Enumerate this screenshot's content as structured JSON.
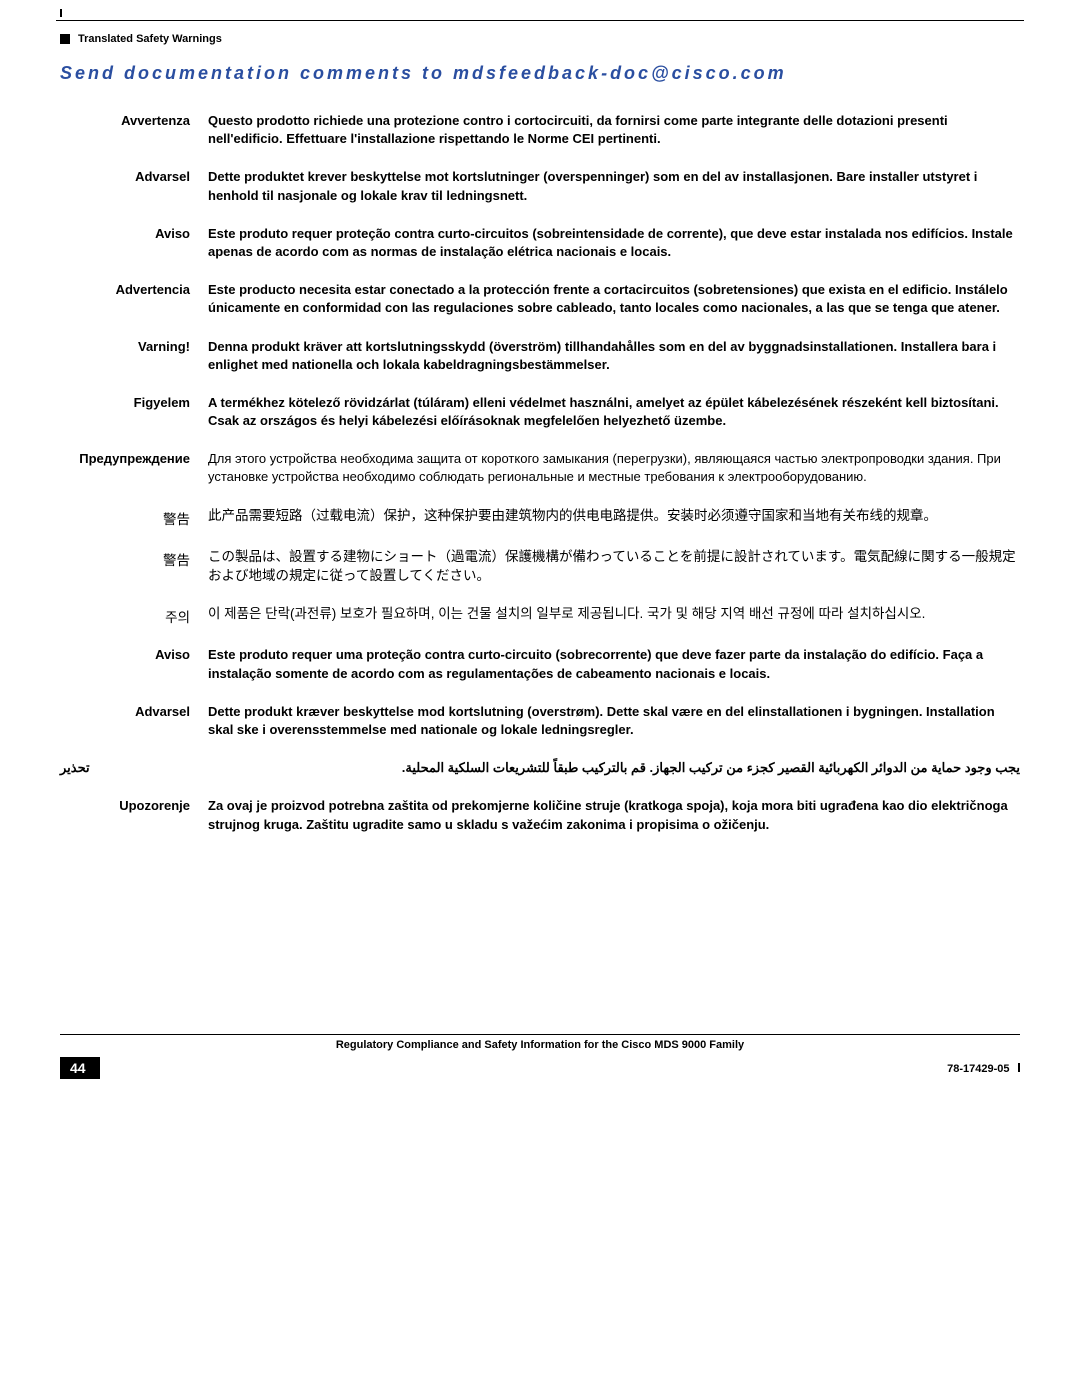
{
  "header": {
    "section": "Translated Safety Warnings",
    "sendLine": "Send documentation comments to mdsfeedback-doc@cisco.com"
  },
  "warnings": [
    {
      "label": "Avvertenza",
      "text": "Questo prodotto richiede una protezione contro i cortocircuiti, da fornirsi come parte integrante delle dotazioni presenti nell'edificio. Effettuare l'installazione rispettando le Norme CEI pertinenti."
    },
    {
      "label": "Advarsel",
      "text": "Dette produktet krever beskyttelse mot kortslutninger (overspenninger) som en del av installasjonen. Bare installer utstyret i henhold til nasjonale og lokale krav til ledningsnett."
    },
    {
      "label": "Aviso",
      "text": "Este produto requer proteção contra curto-circuitos (sobreintensidade de corrente), que deve estar instalada nos edifícios. Instale apenas de acordo com as normas de instalação elétrica nacionais e locais."
    },
    {
      "label": "Advertencia",
      "text": "Este producto necesita estar conectado a la protección frente a cortacircuitos (sobretensiones) que exista en el edificio. Instálelo únicamente en conformidad con las regulaciones sobre cableado, tanto locales como nacionales, a las que se tenga que atener."
    },
    {
      "label": "Varning!",
      "text": "Denna produkt kräver att kortslutningsskydd (överström) tillhandahålles som en del av byggnadsinstallationen. Installera bara i enlighet med nationella och lokala kabeldragningsbestämmelser."
    },
    {
      "label": "Figyelem",
      "text": "A termékhez kötelező rövidzárlat (túláram) elleni védelmet használni, amelyet az épület kábelezésének részeként kell biztosítani. Csak az országos és helyi kábelezési előírásoknak megfelelően helyezhető üzembe."
    },
    {
      "label": "Предупреждение",
      "text": "Для этого устройства необходима защита от короткого замыкания (перегрузки), являющаяся частью электропроводки здания. При установке устройства необходимо соблюдать региональные и местные требования к электрооборудованию."
    },
    {
      "label": "警告",
      "text": "此产品需要短路（过载电流）保护，这种保护要由建筑物内的供电电路提供。安装时必须遵守国家和当地有关布线的规章。"
    },
    {
      "label": "警告",
      "text": "この製品は、設置する建物にショート（過電流）保護機構が備わっていることを前提に設計されています。電気配線に関する一般規定および地域の規定に従って設置してください。"
    },
    {
      "label": "주의",
      "text": "이 제품은 단락(과전류) 보호가 필요하며, 이는 건물 설치의 일부로 제공됩니다. 국가 및 해당 지역 배선 규정에 따라 설치하십시오."
    },
    {
      "label": "Aviso",
      "text": "Este produto requer uma proteção contra curto-circuito (sobrecorrente) que deve fazer parte da instalação do edifício. Faça a instalação somente de acordo com as regulamentações de cabeamento nacionais e locais."
    },
    {
      "label": "Advarsel",
      "text": "Dette produkt kræver beskyttelse mod kortslutning (overstrøm). Dette skal være en del elinstallationen i bygningen. Installation skal ske i overensstemmelse med nationale og lokale ledningsregler."
    },
    {
      "label": "تحذير",
      "text": "يجب وجود حماية من الدوائر الكهربائية القصير كجزء من تركيب الجهاز. قم بالتركيب طبقاً للتشريعات السلكية المحلية."
    },
    {
      "label": "Upozorenje",
      "text": "Za ovaj je proizvod potrebna zaštita od prekomjerne količine struje (kratkoga spoja), koja mora biti ugrađena kao dio električnoga strujnog kruga. Zaštitu ugradite samo u skladu s važećim zakonima i propisima o ožičenju."
    }
  ],
  "footer": {
    "title": "Regulatory Compliance and Safety Information for the Cisco MDS 9000 Family",
    "page": "44",
    "docId": "78-17429-05"
  }
}
